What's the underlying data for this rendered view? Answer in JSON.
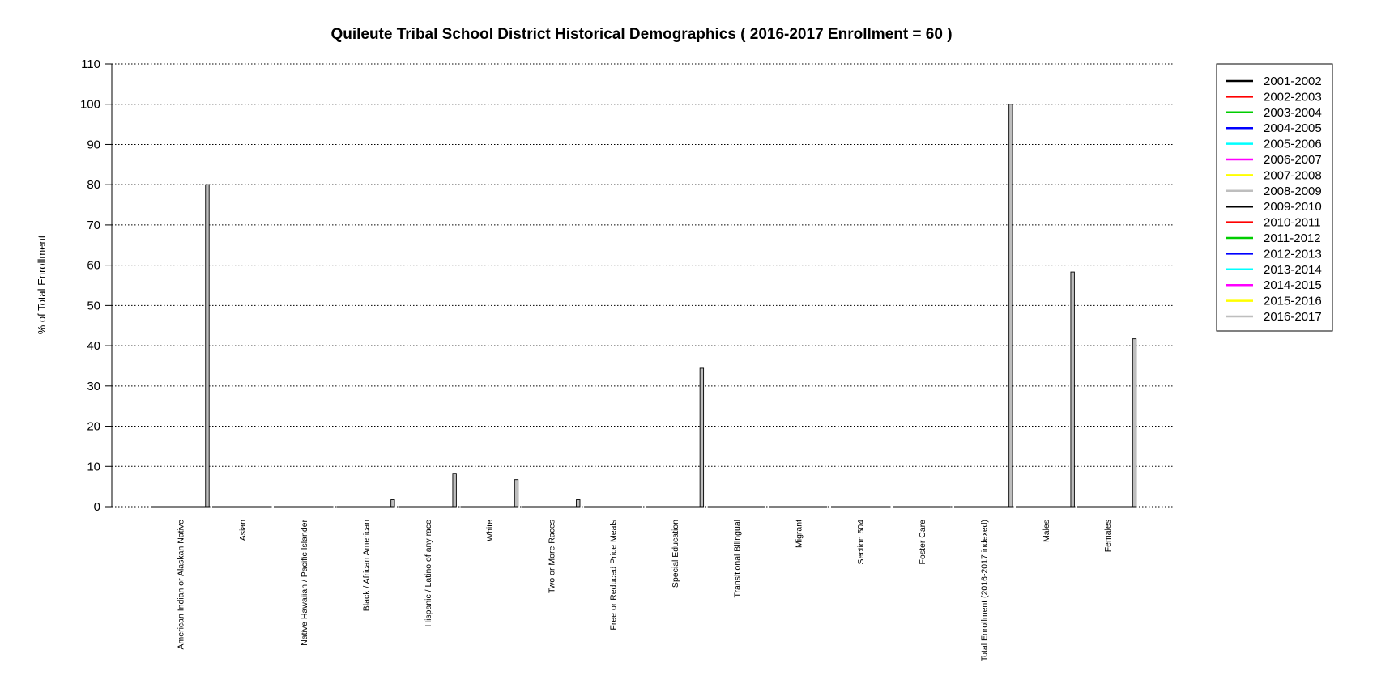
{
  "chart_data": {
    "type": "bar",
    "title": "Quileute Tribal School District Historical Demographics  ( 2016-2017 Enrollment =  60 )",
    "xlabel": "",
    "ylabel": "% of Total Enrollment",
    "ylim": [
      0,
      110
    ],
    "yticks": [
      0,
      10,
      20,
      30,
      40,
      50,
      60,
      70,
      80,
      90,
      100,
      110
    ],
    "grid": "horizontal-dotted",
    "legend_position": "right",
    "categories": [
      "American Indian or Alaskan Native",
      "Asian",
      "Native Hawaiian / Pacific Islander",
      "Black / African American",
      "Hispanic / Latino of any race",
      "White",
      "Two or More Races",
      "Free or Reduced Price Meals",
      "Special Education",
      "Transitional Bilingual",
      "Migrant",
      "Section 504",
      "Foster Care",
      "Total Enrollment (2016-2017 indexed)",
      "Males",
      "Females"
    ],
    "series": [
      {
        "name": "2001-2002",
        "color": "#000000",
        "values": [
          0,
          0,
          0,
          0,
          0,
          0,
          0,
          0,
          0,
          0,
          0,
          0,
          0,
          0,
          0,
          0
        ]
      },
      {
        "name": "2002-2003",
        "color": "#ff0000",
        "values": [
          0,
          0,
          0,
          0,
          0,
          0,
          0,
          0,
          0,
          0,
          0,
          0,
          0,
          0,
          0,
          0
        ]
      },
      {
        "name": "2003-2004",
        "color": "#00cd00",
        "values": [
          0,
          0,
          0,
          0,
          0,
          0,
          0,
          0,
          0,
          0,
          0,
          0,
          0,
          0,
          0,
          0
        ]
      },
      {
        "name": "2004-2005",
        "color": "#0000ff",
        "values": [
          0,
          0,
          0,
          0,
          0,
          0,
          0,
          0,
          0,
          0,
          0,
          0,
          0,
          0,
          0,
          0
        ]
      },
      {
        "name": "2005-2006",
        "color": "#00ffff",
        "values": [
          0,
          0,
          0,
          0,
          0,
          0,
          0,
          0,
          0,
          0,
          0,
          0,
          0,
          0,
          0,
          0
        ]
      },
      {
        "name": "2006-2007",
        "color": "#ff00ff",
        "values": [
          0,
          0,
          0,
          0,
          0,
          0,
          0,
          0,
          0,
          0,
          0,
          0,
          0,
          0,
          0,
          0
        ]
      },
      {
        "name": "2007-2008",
        "color": "#ffff00",
        "values": [
          0,
          0,
          0,
          0,
          0,
          0,
          0,
          0,
          0,
          0,
          0,
          0,
          0,
          0,
          0,
          0
        ]
      },
      {
        "name": "2008-2009",
        "color": "#bebebe",
        "values": [
          0,
          0,
          0,
          0,
          0,
          0,
          0,
          0,
          0,
          0,
          0,
          0,
          0,
          0,
          0,
          0
        ]
      },
      {
        "name": "2009-2010",
        "color": "#000000",
        "values": [
          0,
          0,
          0,
          0,
          0,
          0,
          0,
          0,
          0,
          0,
          0,
          0,
          0,
          0,
          0,
          0
        ]
      },
      {
        "name": "2010-2011",
        "color": "#ff0000",
        "values": [
          0,
          0,
          0,
          0,
          0,
          0,
          0,
          0,
          0,
          0,
          0,
          0,
          0,
          0,
          0,
          0
        ]
      },
      {
        "name": "2011-2012",
        "color": "#00cd00",
        "values": [
          0,
          0,
          0,
          0,
          0,
          0,
          0,
          0,
          0,
          0,
          0,
          0,
          0,
          0,
          0,
          0
        ]
      },
      {
        "name": "2012-2013",
        "color": "#0000ff",
        "values": [
          0,
          0,
          0,
          0,
          0,
          0,
          0,
          0,
          0,
          0,
          0,
          0,
          0,
          0,
          0,
          0
        ]
      },
      {
        "name": "2013-2014",
        "color": "#00ffff",
        "values": [
          0,
          0,
          0,
          0,
          0,
          0,
          0,
          0,
          0,
          0,
          0,
          0,
          0,
          0,
          0,
          0
        ]
      },
      {
        "name": "2014-2015",
        "color": "#ff00ff",
        "values": [
          0,
          0,
          0,
          0,
          0,
          0,
          0,
          0,
          0,
          0,
          0,
          0,
          0,
          0,
          0,
          0
        ]
      },
      {
        "name": "2015-2016",
        "color": "#ffff00",
        "values": [
          0,
          0,
          0,
          0,
          0,
          0,
          0,
          0,
          0,
          0,
          0,
          0,
          0,
          0,
          0,
          0
        ]
      },
      {
        "name": "2016-2017",
        "color": "#bebebe",
        "values": [
          80,
          0,
          0,
          1.7,
          8.3,
          6.7,
          1.7,
          0,
          34.4,
          0,
          0,
          0,
          0,
          100,
          58.3,
          41.7
        ]
      }
    ]
  }
}
